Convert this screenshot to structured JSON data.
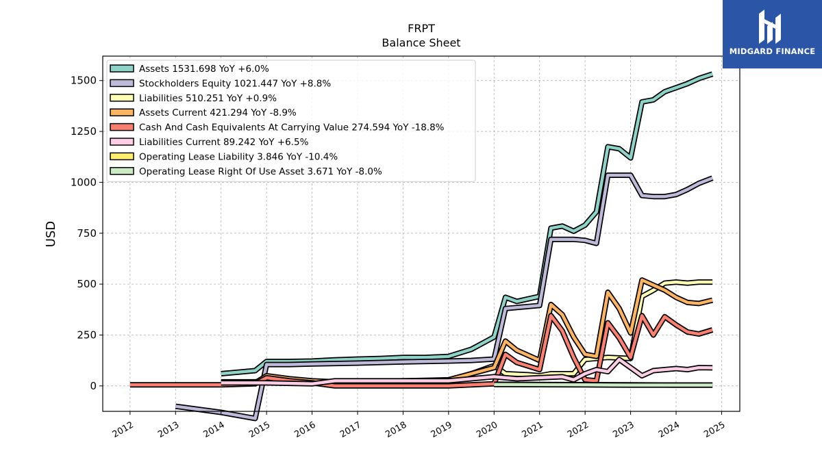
{
  "brand": {
    "name": "MIDGARD FINANCE",
    "bg_color": "#2b56a8"
  },
  "chart_data": {
    "type": "line",
    "title": "FRPT",
    "subtitle": "Balance  Sheet",
    "xlabel": "",
    "ylabel": "USD",
    "xlim": [
      2011.4,
      2025.4
    ],
    "ylim": [
      -125,
      1620
    ],
    "yticks": [
      0,
      250,
      500,
      750,
      1000,
      1250,
      1500
    ],
    "xticks": [
      "2012",
      "2013",
      "2014",
      "2015",
      "2016",
      "2017",
      "2018",
      "2019",
      "2020",
      "2021",
      "2022",
      "2023",
      "2024",
      "2025"
    ],
    "grid": true,
    "legend_position": "top-left",
    "series": [
      {
        "name": "Assets  1531.698 YoY +6.0%",
        "color": "#8dd3c7",
        "points": [
          [
            2014.0,
            60
          ],
          [
            2014.75,
            75
          ],
          [
            2015.0,
            120
          ],
          [
            2015.5,
            120
          ],
          [
            2016.0,
            122
          ],
          [
            2016.5,
            128
          ],
          [
            2017.0,
            132
          ],
          [
            2017.5,
            135
          ],
          [
            2018.0,
            140
          ],
          [
            2018.5,
            140
          ],
          [
            2019.0,
            145
          ],
          [
            2019.5,
            180
          ],
          [
            2019.75,
            210
          ],
          [
            2020.0,
            240
          ],
          [
            2020.25,
            435
          ],
          [
            2020.5,
            415
          ],
          [
            2021.0,
            440
          ],
          [
            2021.25,
            775
          ],
          [
            2021.5,
            785
          ],
          [
            2021.75,
            760
          ],
          [
            2022.0,
            790
          ],
          [
            2022.25,
            855
          ],
          [
            2022.5,
            1175
          ],
          [
            2022.75,
            1165
          ],
          [
            2023.0,
            1120
          ],
          [
            2023.25,
            1395
          ],
          [
            2023.5,
            1405
          ],
          [
            2023.75,
            1445
          ],
          [
            2024.0,
            1465
          ],
          [
            2024.25,
            1485
          ],
          [
            2024.5,
            1510
          ],
          [
            2024.8,
            1532
          ]
        ]
      },
      {
        "name": "Stockholders Equity  1021.447 YoY +8.8%",
        "color": "#bebada",
        "points": [
          [
            2013.0,
            -100
          ],
          [
            2014.0,
            -130
          ],
          [
            2014.75,
            -160
          ],
          [
            2015.0,
            105
          ],
          [
            2015.5,
            105
          ],
          [
            2016.0,
            108
          ],
          [
            2016.5,
            110
          ],
          [
            2017.0,
            112
          ],
          [
            2017.5,
            115
          ],
          [
            2018.0,
            118
          ],
          [
            2018.5,
            120
          ],
          [
            2019.0,
            122
          ],
          [
            2019.5,
            125
          ],
          [
            2020.0,
            132
          ],
          [
            2020.25,
            380
          ],
          [
            2020.5,
            385
          ],
          [
            2020.75,
            390
          ],
          [
            2021.0,
            395
          ],
          [
            2021.25,
            720
          ],
          [
            2021.5,
            720
          ],
          [
            2021.75,
            720
          ],
          [
            2022.0,
            715
          ],
          [
            2022.25,
            700
          ],
          [
            2022.5,
            1035
          ],
          [
            2022.75,
            1035
          ],
          [
            2023.0,
            1035
          ],
          [
            2023.25,
            935
          ],
          [
            2023.5,
            930
          ],
          [
            2023.75,
            930
          ],
          [
            2024.0,
            940
          ],
          [
            2024.25,
            965
          ],
          [
            2024.5,
            995
          ],
          [
            2024.8,
            1021
          ]
        ]
      },
      {
        "name": "Liabilities  510.251 YoY +0.9%",
        "color": "#ffffb3",
        "points": [
          [
            2014.0,
            20
          ],
          [
            2014.75,
            20
          ],
          [
            2015.0,
            25
          ],
          [
            2016.0,
            20
          ],
          [
            2016.5,
            20
          ],
          [
            2017.0,
            20
          ],
          [
            2018.0,
            22
          ],
          [
            2019.0,
            25
          ],
          [
            2019.5,
            60
          ],
          [
            2020.0,
            100
          ],
          [
            2020.25,
            60
          ],
          [
            2020.75,
            55
          ],
          [
            2021.0,
            50
          ],
          [
            2021.25,
            60
          ],
          [
            2021.75,
            60
          ],
          [
            2022.0,
            130
          ],
          [
            2022.5,
            140
          ],
          [
            2023.0,
            135
          ],
          [
            2023.25,
            440
          ],
          [
            2023.5,
            470
          ],
          [
            2023.75,
            505
          ],
          [
            2024.0,
            510
          ],
          [
            2024.25,
            505
          ],
          [
            2024.5,
            510
          ],
          [
            2024.8,
            510
          ]
        ]
      },
      {
        "name": "Assets Current  421.294 YoY -8.9%",
        "color": "#fdb462",
        "points": [
          [
            2014.0,
            10
          ],
          [
            2014.75,
            15
          ],
          [
            2015.0,
            50
          ],
          [
            2015.5,
            35
          ],
          [
            2016.0,
            25
          ],
          [
            2016.5,
            20
          ],
          [
            2017.0,
            20
          ],
          [
            2018.0,
            25
          ],
          [
            2019.0,
            30
          ],
          [
            2019.5,
            60
          ],
          [
            2020.0,
            90
          ],
          [
            2020.25,
            220
          ],
          [
            2020.5,
            175
          ],
          [
            2021.0,
            125
          ],
          [
            2021.25,
            400
          ],
          [
            2021.5,
            350
          ],
          [
            2021.75,
            240
          ],
          [
            2022.0,
            155
          ],
          [
            2022.25,
            145
          ],
          [
            2022.5,
            460
          ],
          [
            2022.75,
            380
          ],
          [
            2023.0,
            260
          ],
          [
            2023.25,
            520
          ],
          [
            2023.5,
            495
          ],
          [
            2023.75,
            470
          ],
          [
            2024.0,
            435
          ],
          [
            2024.25,
            410
          ],
          [
            2024.5,
            405
          ],
          [
            2024.8,
            421
          ]
        ]
      },
      {
        "name": "Cash And Cash Equivalents At Carrying Value  274.594 YoY -18.8%",
        "color": "#fb8072",
        "points": [
          [
            2012.0,
            5
          ],
          [
            2014.0,
            5
          ],
          [
            2014.75,
            10
          ],
          [
            2015.0,
            40
          ],
          [
            2015.5,
            25
          ],
          [
            2016.0,
            15
          ],
          [
            2016.5,
            0
          ],
          [
            2017.0,
            0
          ],
          [
            2018.0,
            0
          ],
          [
            2019.0,
            0
          ],
          [
            2019.5,
            5
          ],
          [
            2020.0,
            10
          ],
          [
            2020.25,
            155
          ],
          [
            2020.5,
            115
          ],
          [
            2021.0,
            80
          ],
          [
            2021.25,
            345
          ],
          [
            2021.5,
            270
          ],
          [
            2021.75,
            140
          ],
          [
            2022.0,
            30
          ],
          [
            2022.25,
            25
          ],
          [
            2022.5,
            310
          ],
          [
            2022.75,
            235
          ],
          [
            2023.0,
            140
          ],
          [
            2023.25,
            345
          ],
          [
            2023.5,
            250
          ],
          [
            2023.75,
            340
          ],
          [
            2024.0,
            300
          ],
          [
            2024.25,
            265
          ],
          [
            2024.5,
            255
          ],
          [
            2024.8,
            275
          ]
        ]
      },
      {
        "name": "Liabilities Current  89.242 YoY +6.5%",
        "color": "#fccde5",
        "points": [
          [
            2014.0,
            15
          ],
          [
            2015.0,
            15
          ],
          [
            2016.0,
            10
          ],
          [
            2016.5,
            25
          ],
          [
            2017.0,
            25
          ],
          [
            2018.0,
            25
          ],
          [
            2019.0,
            25
          ],
          [
            2019.5,
            35
          ],
          [
            2020.0,
            45
          ],
          [
            2020.5,
            35
          ],
          [
            2021.0,
            40
          ],
          [
            2021.5,
            45
          ],
          [
            2021.75,
            30
          ],
          [
            2022.0,
            60
          ],
          [
            2022.25,
            80
          ],
          [
            2022.5,
            70
          ],
          [
            2022.75,
            130
          ],
          [
            2023.0,
            90
          ],
          [
            2023.25,
            50
          ],
          [
            2023.5,
            75
          ],
          [
            2023.75,
            80
          ],
          [
            2024.0,
            85
          ],
          [
            2024.25,
            80
          ],
          [
            2024.5,
            90
          ],
          [
            2024.8,
            89
          ]
        ]
      },
      {
        "name": "Operating Lease Liability  3.846 YoY -10.4%",
        "color": "#ffed6f",
        "points": [
          [
            2020.0,
            8
          ],
          [
            2021.0,
            7
          ],
          [
            2022.0,
            6
          ],
          [
            2023.0,
            5
          ],
          [
            2024.0,
            4
          ],
          [
            2024.8,
            4
          ]
        ]
      },
      {
        "name": "Operating Lease Right Of Use Asset  3.671 YoY -8.0%",
        "color": "#ccebc5",
        "points": [
          [
            2020.0,
            7
          ],
          [
            2021.0,
            6
          ],
          [
            2022.0,
            5
          ],
          [
            2023.0,
            4
          ],
          [
            2024.0,
            4
          ],
          [
            2024.8,
            4
          ]
        ]
      }
    ]
  }
}
